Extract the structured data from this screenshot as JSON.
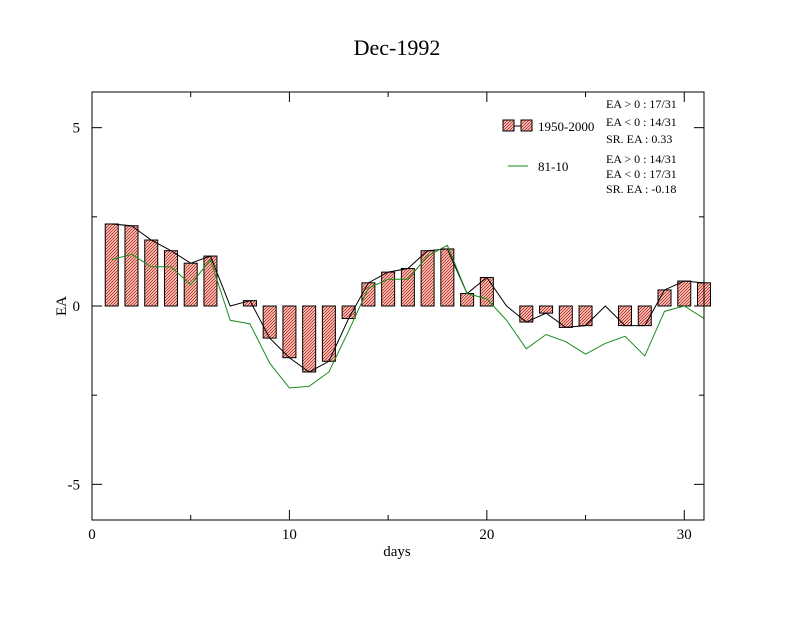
{
  "chart_data": {
    "type": "bar",
    "title": "Dec-1992",
    "xlabel": "days",
    "ylabel": "EA",
    "xlim": [
      0,
      31
    ],
    "ylim": [
      -6,
      6
    ],
    "x_ticks": [
      {
        "value": 0,
        "label": "0"
      },
      {
        "value": 10,
        "label": "10"
      },
      {
        "value": 20,
        "label": "20"
      },
      {
        "value": 30,
        "label": "30"
      }
    ],
    "y_ticks": [
      {
        "value": 5,
        "label": "5"
      },
      {
        "value": 0,
        "label": "0"
      },
      {
        "value": -5,
        "label": "-5"
      }
    ],
    "x": [
      1,
      2,
      3,
      4,
      5,
      6,
      7,
      8,
      9,
      10,
      11,
      12,
      13,
      14,
      15,
      16,
      17,
      18,
      19,
      20,
      21,
      22,
      23,
      24,
      25,
      26,
      27,
      28,
      29,
      30,
      31
    ],
    "series": [
      {
        "name": "1950-2000",
        "kind": "bar+line",
        "bar_color": "#e87070",
        "line_color": "#000000",
        "values": [
          2.3,
          2.25,
          1.85,
          1.55,
          1.2,
          1.4,
          0.0,
          0.15,
          -0.9,
          -1.45,
          -1.85,
          -1.55,
          -0.35,
          0.65,
          0.95,
          1.05,
          1.55,
          1.6,
          0.35,
          0.8,
          0.0,
          -0.45,
          -0.2,
          -0.6,
          -0.55,
          0.0,
          -0.55,
          -0.55,
          0.45,
          0.7,
          0.65
        ]
      },
      {
        "name": "81-10",
        "kind": "line",
        "line_color": "#1a8c1a",
        "values": [
          1.3,
          1.45,
          1.1,
          1.1,
          0.6,
          1.3,
          -0.4,
          -0.5,
          -1.6,
          -2.3,
          -2.25,
          -1.85,
          -0.7,
          0.5,
          0.75,
          0.75,
          1.4,
          1.7,
          0.35,
          0.2,
          -0.4,
          -1.2,
          -0.8,
          -1.0,
          -1.35,
          -1.05,
          -0.85,
          -1.4,
          -0.15,
          0.0,
          -0.35
        ]
      }
    ],
    "legend": {
      "placement": "top-right",
      "entries": [
        {
          "label": "1950-2000",
          "stats": [
            "EA > 0 : 17/31",
            "EA < 0 : 14/31",
            "SR. EA :  0.33"
          ]
        },
        {
          "label": "81-10",
          "stats": [
            "EA > 0 : 14/31",
            "EA < 0 : 17/31",
            "SR. EA : -0.18"
          ]
        }
      ]
    }
  }
}
